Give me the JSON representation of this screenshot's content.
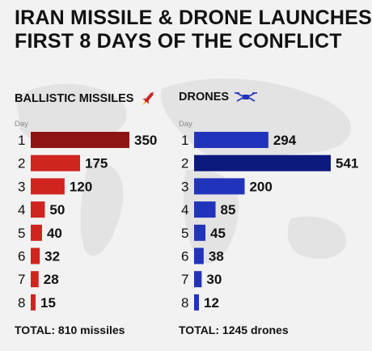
{
  "title_lines": [
    "IRAN MISSILE & DRONE LAUNCHES",
    "FIRST 8 DAYS OF THE CONFLICT"
  ],
  "chart_data": [
    {
      "type": "bar",
      "orientation": "horizontal",
      "title": "BALLISTIC MISSILES",
      "icon": "missile-icon",
      "axis_label": "Day",
      "categories": [
        "1",
        "2",
        "3",
        "4",
        "5",
        "6",
        "7",
        "8"
      ],
      "values": [
        350,
        175,
        120,
        50,
        40,
        32,
        28,
        15
      ],
      "colors": [
        "#8e1414",
        "#cf2420",
        "#cf2420",
        "#cf2420",
        "#cf2420",
        "#cf2420",
        "#cf2420",
        "#cf2420"
      ],
      "total_text": "TOTAL: 810 missiles"
    },
    {
      "type": "bar",
      "orientation": "horizontal",
      "title": "DRONES",
      "icon": "drone-icon",
      "axis_label": "Day",
      "categories": [
        "1",
        "2",
        "3",
        "4",
        "5",
        "6",
        "7",
        "8"
      ],
      "values": [
        294,
        541,
        200,
        85,
        45,
        38,
        30,
        12
      ],
      "colors": [
        "#2233bb",
        "#0c1a7e",
        "#2233bb",
        "#2233bb",
        "#2233bb",
        "#2233bb",
        "#2233bb",
        "#2233bb"
      ],
      "total_text": "TOTAL: 1245 drones"
    }
  ]
}
